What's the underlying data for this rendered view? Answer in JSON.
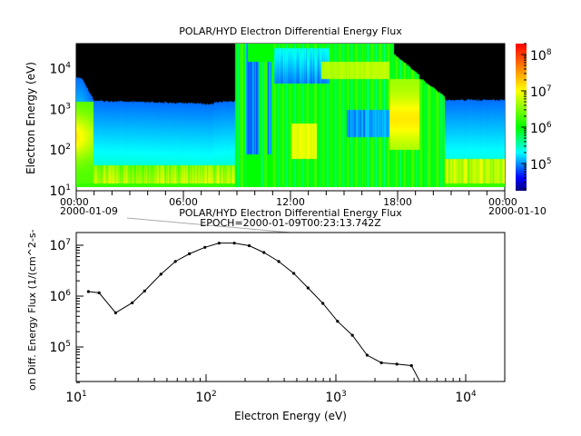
{
  "chart_data": [
    {
      "type": "heatmap",
      "title": "POLAR/HYD  Electron Differential Energy Flux",
      "ylabel": "Electron Energy (eV)",
      "yscale": "log",
      "ylim": [
        10,
        20000
      ],
      "y_ticks": [
        "10^1",
        "10^2",
        "10^3",
        "10^4"
      ],
      "x_ticks": [
        "00:00",
        "06:00",
        "12:00",
        "18:00",
        "00:00"
      ],
      "x_dates": {
        "start": "2000-01-09",
        "end": "2000-01-10"
      },
      "colorbar": {
        "scale": "log",
        "range": [
          20000,
          200000000
        ],
        "ticks": [
          "10^5",
          "10^6",
          "10^7",
          "10^8"
        ],
        "colormap": "rainbow",
        "colors": [
          "#00007f",
          "#0000ff",
          "#00ffff",
          "#00ff00",
          "#ffff00",
          "#ff0000"
        ]
      },
      "background_no_data": "#000000"
    },
    {
      "type": "line",
      "title": "POLAR/HYD  Electron Differential Energy Flux",
      "subtitle": "EPOCH=2000-01-09T00:23:13.742Z",
      "xlabel": "Electron Energy (eV)",
      "ylabel": "on Diff. Energy Flux (1/(cm^2-s-",
      "xscale": "log",
      "yscale": "log",
      "xlim": [
        10,
        20000
      ],
      "ylim": [
        20000,
        18000000
      ],
      "x_ticks": [
        "10^1",
        "10^2",
        "10^3",
        "10^4"
      ],
      "y_ticks": [
        "10^5",
        "10^6",
        "10^7"
      ],
      "grid": false,
      "line_color": "#000000",
      "x": [
        12.4,
        15.0,
        20.1,
        27,
        33.6,
        44.9,
        58,
        74.4,
        98,
        126,
        165,
        215,
        279,
        363,
        474,
        610,
        794,
        1030,
        1340,
        1740,
        2240,
        2950,
        3820,
        4900
      ],
      "y": [
        1230000,
        1160000,
        470000,
        740000,
        1260000,
        2700000,
        4800000,
        6800000,
        9100000,
        11000000,
        11000000,
        9800000,
        7200000,
        4800000,
        2800000,
        1450000,
        720000,
        320000,
        170000,
        69000,
        49000,
        46000,
        43000,
        13000
      ]
    }
  ]
}
